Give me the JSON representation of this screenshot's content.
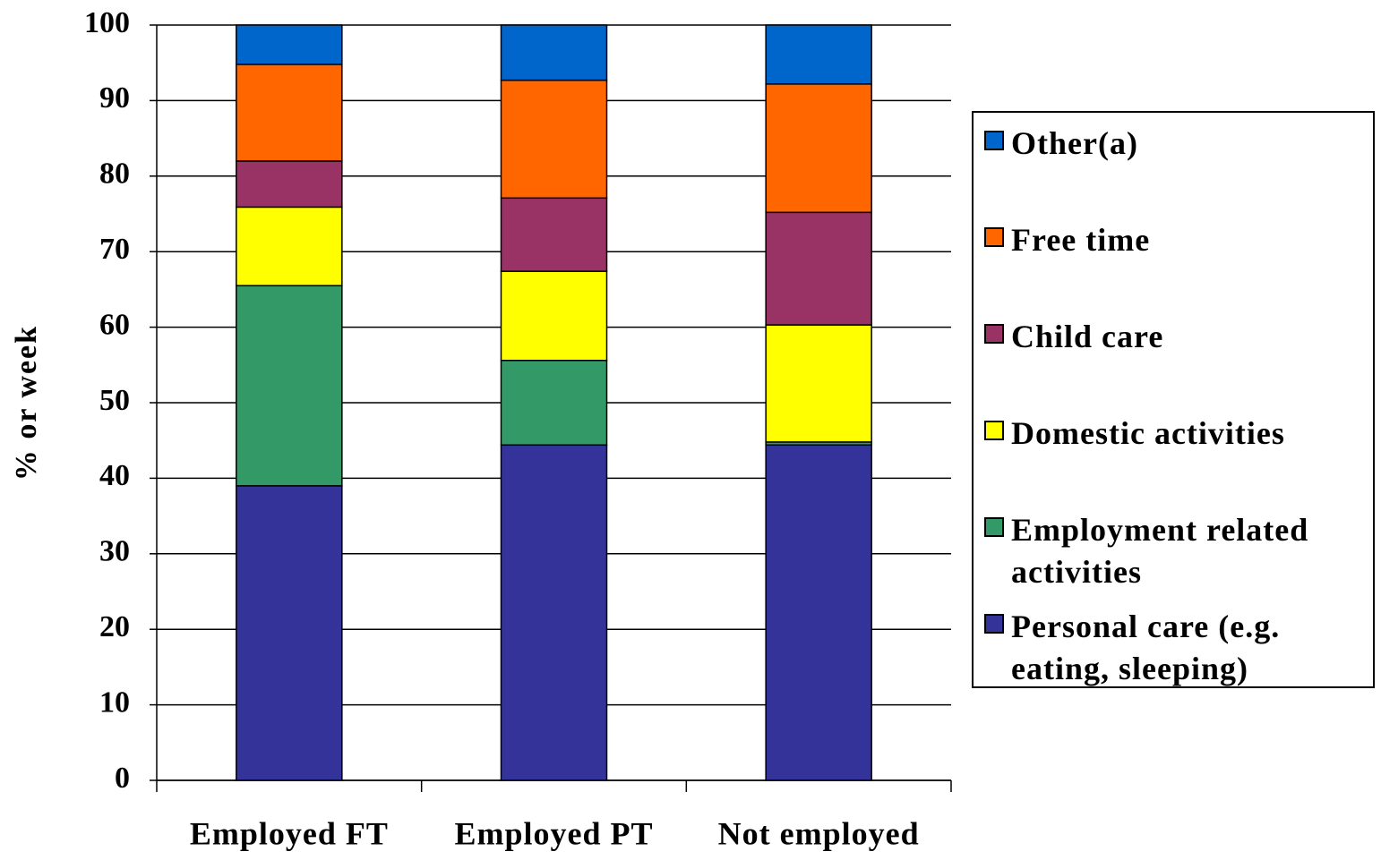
{
  "chart_data": {
    "type": "stacked_bar",
    "y_label": "% or week",
    "categories": [
      "Employed FT",
      "Employed PT",
      "Not employed"
    ],
    "series": [
      {
        "name": "Personal care (e.g. eating, sleeping)",
        "color": "#333399",
        "values": [
          39,
          44.4,
          44.4
        ]
      },
      {
        "name": "Employment related activities",
        "color": "#339966",
        "values": [
          26.5,
          11.2,
          0.4
        ]
      },
      {
        "name": "Domestic activities",
        "color": "#ffff00",
        "values": [
          10.4,
          11.8,
          15.5
        ]
      },
      {
        "name": "Child care",
        "color": "#993366",
        "values": [
          6.1,
          9.7,
          14.9
        ]
      },
      {
        "name": "Free time",
        "color": "#ff6600",
        "values": [
          12.8,
          15.6,
          17.0
        ]
      },
      {
        "name": "Other(a)",
        "color": "#0066cc",
        "values": [
          5.2,
          7.3,
          7.8
        ]
      }
    ],
    "ylim": [
      0,
      100
    ],
    "yticks": [
      0,
      10,
      20,
      30,
      40,
      50,
      60,
      70,
      80,
      90,
      100
    ],
    "grid": true
  }
}
